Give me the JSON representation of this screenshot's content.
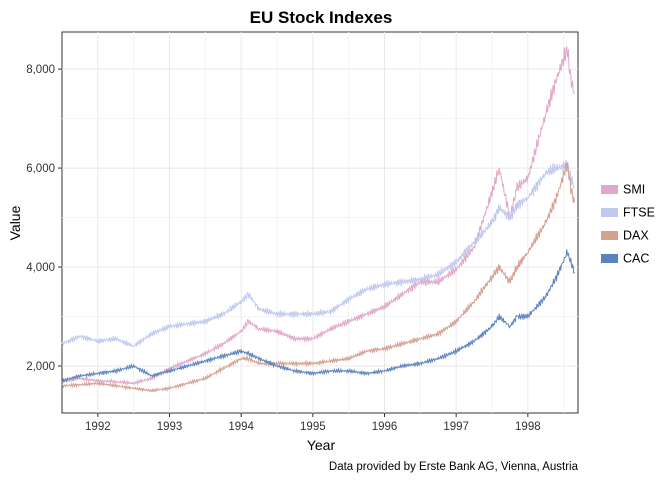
{
  "chart_data": {
    "type": "line",
    "title": "EU Stock Indexes",
    "xlabel": "Year",
    "ylabel": "Value",
    "caption": "Data provided by Erste Bank AG, Vienna, Austria",
    "xlim": [
      1991.5,
      1998.7
    ],
    "ylim": [
      1050,
      8750
    ],
    "x_ticks": [
      1992,
      1993,
      1994,
      1995,
      1996,
      1997,
      1998
    ],
    "x_tick_labels": [
      "1992",
      "1993",
      "1994",
      "1995",
      "1996",
      "1997",
      "1998"
    ],
    "y_ticks": [
      2000,
      4000,
      6000,
      8000
    ],
    "y_tick_labels": [
      "2,000",
      "4,000",
      "6,000",
      "8,000"
    ],
    "grid": true,
    "legend_position": "right",
    "x": [
      1991.5,
      1991.75,
      1992.0,
      1992.25,
      1992.5,
      1992.75,
      1993.0,
      1993.25,
      1993.5,
      1993.75,
      1994.0,
      1994.1,
      1994.25,
      1994.5,
      1994.75,
      1995.0,
      1995.25,
      1995.5,
      1995.75,
      1996.0,
      1996.25,
      1996.5,
      1996.75,
      1997.0,
      1997.25,
      1997.5,
      1997.6,
      1997.75,
      1997.85,
      1998.0,
      1998.25,
      1998.4,
      1998.55,
      1998.6,
      1998.65
    ],
    "series": [
      {
        "name": "SMI",
        "color": "#e0a8c8",
        "values": [
          1680,
          1750,
          1700,
          1680,
          1650,
          1750,
          1950,
          2100,
          2250,
          2450,
          2700,
          2900,
          2750,
          2700,
          2550,
          2550,
          2750,
          2900,
          3050,
          3200,
          3450,
          3700,
          3700,
          3950,
          4400,
          5500,
          6000,
          5000,
          5600,
          5800,
          7100,
          7800,
          8400,
          7800,
          7500
        ]
      },
      {
        "name": "FTSE",
        "color": "#c0c8ee",
        "values": [
          2450,
          2600,
          2500,
          2550,
          2400,
          2650,
          2800,
          2850,
          2900,
          3050,
          3300,
          3450,
          3150,
          3050,
          3050,
          3050,
          3100,
          3350,
          3550,
          3650,
          3700,
          3750,
          3850,
          4100,
          4500,
          4900,
          5200,
          5000,
          5250,
          5400,
          5900,
          6000,
          6050,
          5800,
          5600
        ]
      },
      {
        "name": "DAX",
        "color": "#d4a090",
        "values": [
          1600,
          1620,
          1650,
          1600,
          1550,
          1500,
          1550,
          1650,
          1750,
          1950,
          2150,
          2150,
          2050,
          2050,
          2050,
          2050,
          2100,
          2150,
          2300,
          2350,
          2450,
          2550,
          2650,
          2900,
          3300,
          3800,
          4000,
          3700,
          4000,
          4300,
          4900,
          5400,
          6100,
          5600,
          5300
        ]
      },
      {
        "name": "CAC",
        "color": "#5a82c0",
        "values": [
          1700,
          1800,
          1850,
          1900,
          2000,
          1800,
          1900,
          2000,
          2100,
          2200,
          2300,
          2250,
          2150,
          2000,
          1900,
          1850,
          1900,
          1900,
          1850,
          1900,
          2000,
          2050,
          2150,
          2300,
          2500,
          2800,
          3000,
          2800,
          3000,
          3000,
          3400,
          3800,
          4300,
          4100,
          3900
        ]
      }
    ]
  }
}
